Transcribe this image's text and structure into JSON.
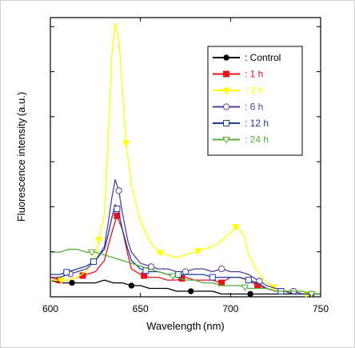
{
  "chart_data": {
    "type": "line",
    "title": "",
    "xlabel": "Wavelength (nm)",
    "ylabel": "Fluorescence intensity (a.u.)",
    "xlim": [
      600,
      750
    ],
    "ylim": [
      0,
      100
    ],
    "x_ticks": [
      600,
      650,
      700,
      750
    ],
    "x_tick_labels": [
      "600",
      "650",
      "700",
      "750"
    ],
    "y_tick_labels_shown": false,
    "grid": false,
    "legend_position": "top-right",
    "series": [
      {
        "name": ": Control",
        "color": "#000000",
        "marker": "filled-circle",
        "x": [
          600,
          605,
          610,
          615,
          620,
          625,
          630,
          635,
          640,
          645,
          650,
          655,
          660,
          665,
          670,
          675,
          680,
          685,
          690,
          695,
          700,
          705,
          710,
          715,
          720,
          725,
          730,
          735,
          740,
          745,
          750
        ],
        "y": [
          6,
          5,
          5,
          5,
          5,
          5,
          6,
          5,
          5,
          4,
          4,
          3,
          3,
          3,
          2,
          2,
          2,
          2,
          2,
          1,
          1,
          1,
          1,
          1,
          1,
          1,
          1,
          1,
          1,
          1,
          1
        ],
        "marker_x": [
          612,
          645,
          678,
          711,
          745
        ]
      },
      {
        "name": ": 1 h",
        "color": "#e8141c",
        "marker": "filled-square",
        "x": [
          600,
          605,
          610,
          615,
          620,
          625,
          630,
          632,
          635,
          637,
          640,
          643,
          645,
          650,
          655,
          660,
          665,
          670,
          675,
          680,
          685,
          690,
          695,
          700,
          705,
          710,
          715,
          720,
          725,
          730,
          735,
          740,
          745,
          750
        ],
        "y": [
          7,
          6,
          6,
          7,
          8,
          9,
          13,
          18,
          25,
          29,
          24,
          15,
          10,
          8,
          7,
          7,
          6,
          6,
          7,
          6,
          6,
          6,
          5,
          7,
          7,
          6,
          4,
          3,
          2,
          2,
          1,
          1,
          1,
          1
        ],
        "marker_x": [
          605,
          618,
          637,
          652,
          673,
          695,
          715
        ]
      },
      {
        "name": ": 3 h",
        "color": "#ffff00",
        "marker": "filled-triangle-down",
        "x": [
          600,
          605,
          610,
          615,
          620,
          625,
          630,
          632,
          634,
          636,
          638,
          640,
          642,
          645,
          650,
          655,
          660,
          665,
          670,
          675,
          680,
          685,
          690,
          695,
          700,
          703,
          705,
          708,
          710,
          715,
          720,
          725,
          730,
          735,
          740,
          745,
          750
        ],
        "y": [
          6,
          6,
          6,
          7,
          9,
          14,
          30,
          55,
          85,
          98,
          92,
          75,
          55,
          40,
          27,
          20,
          16,
          15,
          14,
          15,
          16,
          17,
          18,
          20,
          23,
          25,
          24,
          21,
          15,
          9,
          5,
          3,
          2,
          2,
          1,
          1,
          1
        ],
        "marker_x": [
          606,
          627,
          642,
          661,
          682,
          703,
          724,
          742
        ]
      },
      {
        "name": ": 6 h",
        "color": "#5b3e9a",
        "marker": "open-circle",
        "x": [
          600,
          605,
          610,
          615,
          620,
          625,
          630,
          632,
          634,
          636,
          638,
          640,
          643,
          645,
          650,
          655,
          660,
          665,
          670,
          675,
          680,
          685,
          690,
          695,
          700,
          705,
          710,
          715,
          720,
          725,
          730,
          735,
          740,
          745,
          750
        ],
        "y": [
          7,
          7,
          8,
          9,
          10,
          13,
          18,
          26,
          35,
          42,
          38,
          30,
          20,
          16,
          12,
          11,
          10,
          10,
          9,
          9,
          10,
          10,
          9,
          10,
          9,
          9,
          8,
          6,
          4,
          3,
          2,
          2,
          1,
          1,
          1
        ],
        "marker_x": [
          611,
          638,
          656,
          675,
          695,
          716,
          735
        ]
      },
      {
        "name": ": 12 h",
        "color": "#1a3d9e",
        "marker": "open-square",
        "x": [
          600,
          605,
          610,
          615,
          620,
          625,
          630,
          632,
          634,
          636,
          638,
          640,
          643,
          645,
          650,
          655,
          660,
          665,
          670,
          675,
          680,
          685,
          690,
          695,
          700,
          705,
          710,
          715,
          720,
          725,
          730,
          735,
          740,
          745,
          750
        ],
        "y": [
          8,
          8,
          9,
          10,
          11,
          13,
          17,
          22,
          28,
          33,
          30,
          24,
          17,
          13,
          10,
          9,
          9,
          8,
          8,
          8,
          8,
          8,
          7,
          7,
          7,
          7,
          6,
          5,
          3,
          2,
          2,
          1,
          1,
          1,
          1
        ],
        "marker_x": [
          609,
          624,
          637,
          653,
          671,
          690,
          710,
          728
        ]
      },
      {
        "name": ": 24 h",
        "color": "#5aad3a",
        "marker": "open-triangle-down",
        "x": [
          600,
          605,
          610,
          615,
          620,
          625,
          630,
          635,
          640,
          645,
          650,
          655,
          660,
          665,
          670,
          675,
          680,
          685,
          690,
          695,
          700,
          705,
          710,
          715,
          720,
          725,
          730,
          735,
          740,
          745,
          750
        ],
        "y": [
          16,
          16,
          17,
          17,
          16,
          16,
          15,
          14,
          13,
          12,
          11,
          10,
          9,
          8,
          7,
          6,
          6,
          5,
          5,
          4,
          4,
          4,
          3,
          3,
          3,
          2,
          2,
          2,
          2,
          1,
          1
        ],
        "marker_x": [
          623,
          668,
          708,
          745
        ]
      }
    ]
  }
}
